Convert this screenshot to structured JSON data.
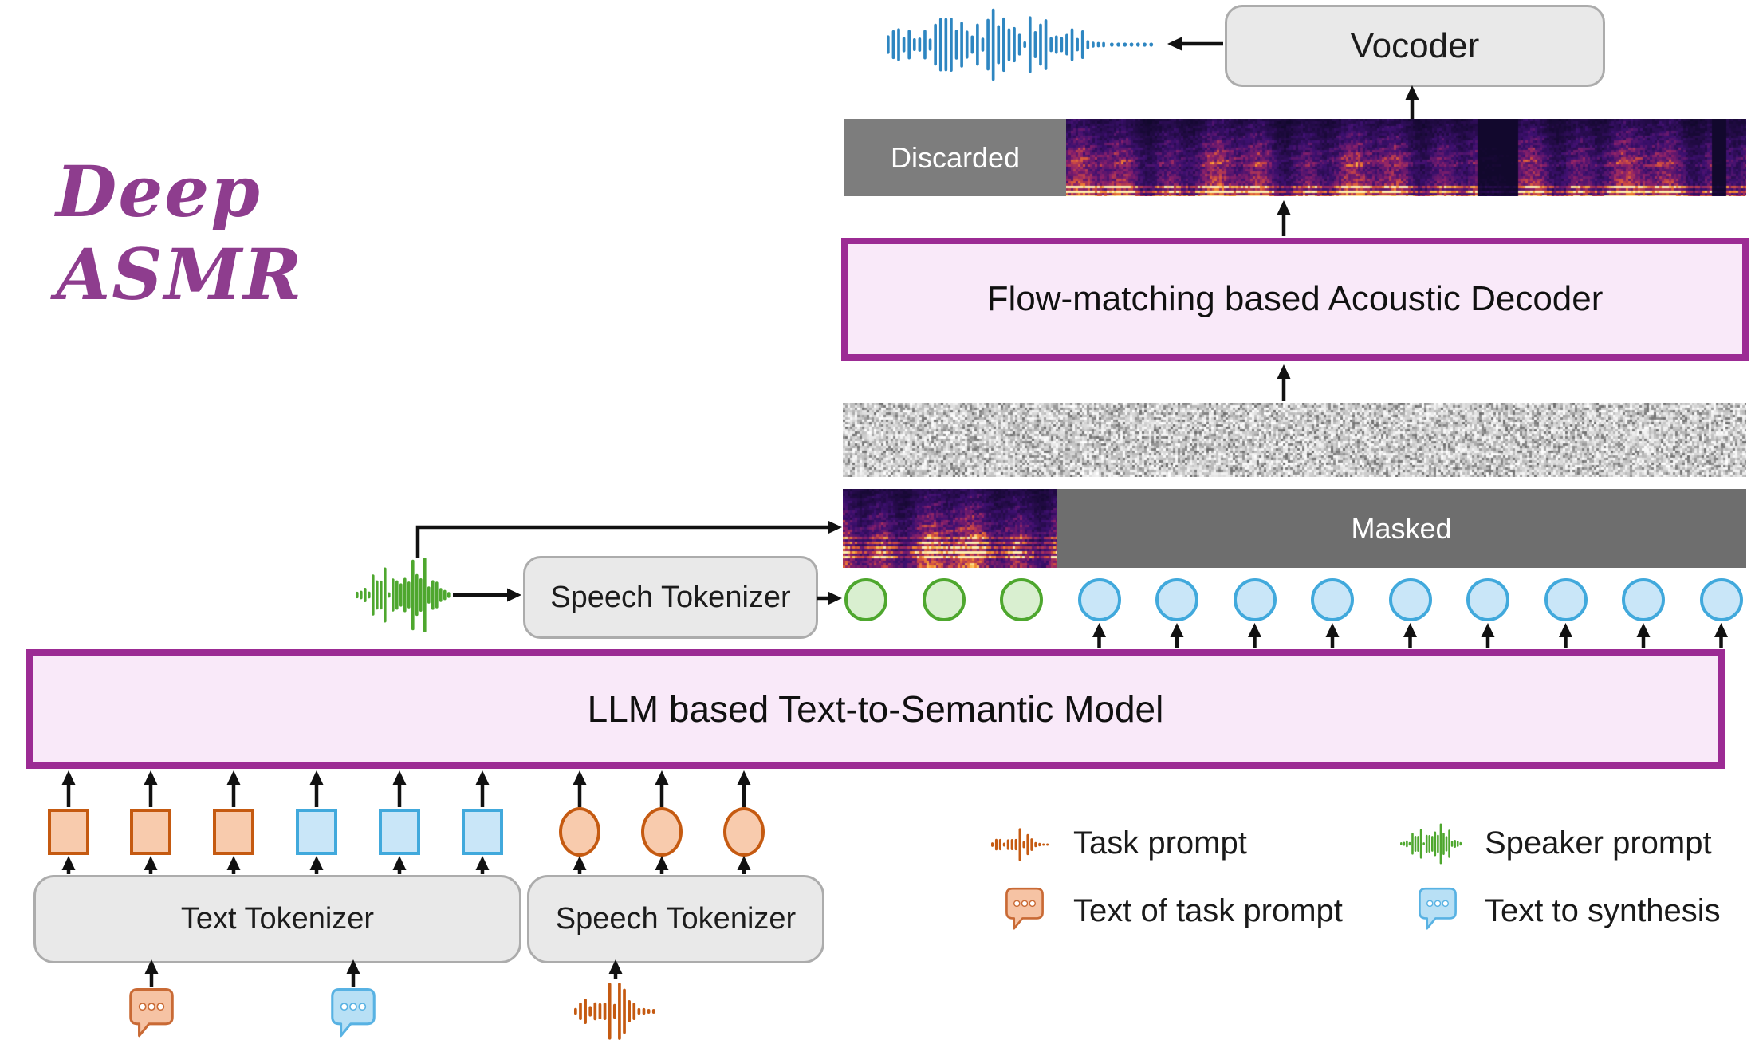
{
  "title": "Deep ASMR",
  "boxes": {
    "vocoder": "Vocoder",
    "acoustic_decoder": "Flow-matching based Acoustic Decoder",
    "llm": "LLM based Text-to-Semantic Model",
    "speech_tokenizer_top": "Speech Tokenizer",
    "text_tokenizer": "Text Tokenizer",
    "speech_tokenizer_bottom": "Speech Tokenizer"
  },
  "strip_labels": {
    "discarded": "Discarded",
    "masked": "Masked"
  },
  "legend": {
    "items": [
      {
        "icon": "task-prompt-waveform-icon",
        "label": "Task prompt"
      },
      {
        "icon": "speaker-prompt-waveform-icon",
        "label": "Speaker prompt"
      },
      {
        "icon": "task-text-bubble-icon",
        "label": "Text of task prompt"
      },
      {
        "icon": "synthesis-text-bubble-icon",
        "label": "Text to synthesis"
      }
    ]
  },
  "semantic_tokens": {
    "speaker": {
      "count": 3,
      "fill": "#D9EFD0",
      "border": "#4EA72E"
    },
    "generated": {
      "count": 9,
      "fill": "#C9E6F8",
      "border": "#41A9DC"
    }
  },
  "input_tokens": {
    "task_text": {
      "count": 3,
      "shape": "square",
      "fill": "#F8CBAD",
      "border": "#C55A11"
    },
    "synthesis_text": {
      "count": 3,
      "shape": "square",
      "fill": "#C9E6F8",
      "border": "#41A9DC"
    },
    "task_speech": {
      "count": 3,
      "shape": "circle",
      "fill": "#F8CBAD",
      "border": "#C55A11"
    }
  },
  "colors": {
    "title": "#8E3D8E",
    "model_box_fill": "#F9E9F9",
    "model_box_border": "#9C2B94",
    "gray_box_fill": "#E9E9E9",
    "discarded_bg": "#7D7D7D",
    "masked_bg": "#6E6E6E",
    "waveform_blue": "#2E86C1",
    "waveform_green": "#4EA72E",
    "waveform_orange": "#C55A11",
    "bubble_orange_fill": "#F6C3A4",
    "bubble_orange_border": "#C96A35",
    "bubble_blue_fill": "#B8E0F5",
    "bubble_blue_border": "#58B2E3",
    "arrow": "#111111"
  }
}
